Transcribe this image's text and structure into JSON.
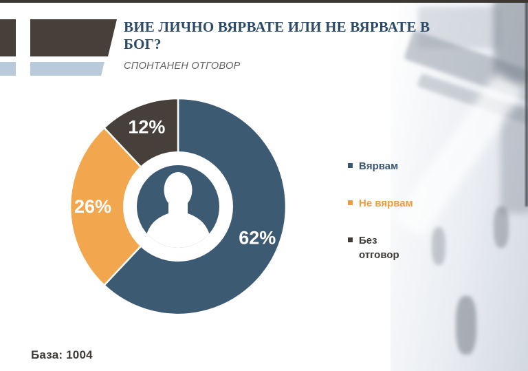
{
  "slide": {
    "title_line1": "ВИЕ ЛИЧНО ВЯРВАТЕ ИЛИ НЕ ВЯРВАТЕ В",
    "title_line2": "БОГ?",
    "subtitle": "СПОНТАНЕН ОТГОВОР",
    "base_note": "База: 1004"
  },
  "chart_data": {
    "type": "pie",
    "variant": "donut",
    "title": "ВИЕ ЛИЧНО ВЯРВАТЕ ИЛИ НЕ ВЯРВАТЕ В БОГ?",
    "subtitle": "СПОНТАНЕН ОТГОВОР",
    "base": 1004,
    "categories": [
      "Вярвам",
      "Не вярвам",
      "Без отговор"
    ],
    "values": [
      62,
      26,
      12
    ],
    "labels": [
      "62%",
      "26%",
      "12%"
    ],
    "unit": "%",
    "colors": [
      "#3d5a73",
      "#f2a74f",
      "#463f3a"
    ],
    "start_angle_deg": 0,
    "direction": "clockwise",
    "legend_position": "right",
    "center_icon": "person-silhouette"
  },
  "legend": {
    "items": [
      {
        "label": "Вярвам",
        "color": "#3b5670"
      },
      {
        "label": "Не вярвам",
        "color": "#ee9a3d"
      },
      {
        "label": "Без отговор",
        "color": "#3e3a36"
      }
    ]
  },
  "theme": {
    "top_strip": "#3a3733",
    "accent_bar_dark": "#463f3a",
    "accent_bar_light_blue": "#b9cada",
    "title_color": "#2d4b66"
  }
}
